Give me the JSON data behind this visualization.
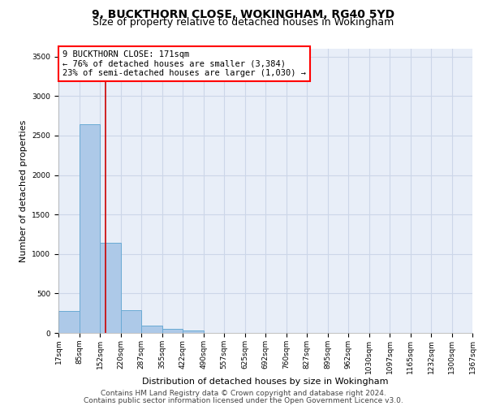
{
  "title": "9, BUCKTHORN CLOSE, WOKINGHAM, RG40 5YD",
  "subtitle": "Size of property relative to detached houses in Wokingham",
  "xlabel": "Distribution of detached houses by size in Wokingham",
  "ylabel": "Number of detached properties",
  "footer_line1": "Contains HM Land Registry data © Crown copyright and database right 2024.",
  "footer_line2": "Contains public sector information licensed under the Open Government Licence v3.0.",
  "annotation_line1": "9 BUCKTHORN CLOSE: 171sqm",
  "annotation_line2": "← 76% of detached houses are smaller (3,384)",
  "annotation_line3": "23% of semi-detached houses are larger (1,030) →",
  "property_size": 171,
  "bin_edges": [
    17,
    85,
    152,
    220,
    287,
    355,
    422,
    490,
    557,
    625,
    692,
    760,
    827,
    895,
    962,
    1030,
    1097,
    1165,
    1232,
    1300,
    1367
  ],
  "bin_counts": [
    280,
    2640,
    1140,
    290,
    90,
    50,
    30,
    0,
    0,
    0,
    0,
    0,
    0,
    0,
    0,
    0,
    0,
    0,
    0,
    0
  ],
  "bar_color": "#adc9e8",
  "bar_edge_color": "#6aaad4",
  "vline_color": "#cc0000",
  "ylim": [
    0,
    3600
  ],
  "yticks": [
    0,
    500,
    1000,
    1500,
    2000,
    2500,
    3000,
    3500
  ],
  "grid_color": "#ccd6e8",
  "bg_color": "#e8eef8",
  "title_fontsize": 10,
  "subtitle_fontsize": 9,
  "annotation_fontsize": 7.5,
  "ylabel_fontsize": 8,
  "xlabel_fontsize": 8,
  "tick_fontsize": 6.5,
  "footer_fontsize": 6.5
}
